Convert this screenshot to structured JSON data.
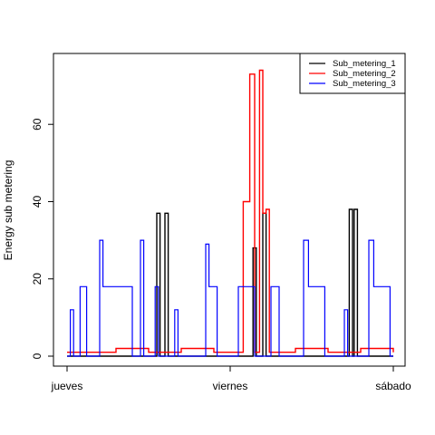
{
  "chart_data": {
    "type": "line",
    "title": "",
    "xlabel": "",
    "ylabel": "Energy sub metering",
    "x_ticks": [
      "jueves",
      "viernes",
      "sábado"
    ],
    "x_range_days": [
      0,
      2
    ],
    "ylim": [
      0,
      76
    ],
    "y_ticks": [
      0,
      20,
      40,
      60
    ],
    "grid": false,
    "legend_position": "top-right",
    "series": [
      {
        "name": "Sub_metering_1",
        "color": "#000000",
        "points": [
          [
            0,
            0
          ],
          [
            0.5,
            0
          ],
          [
            0.55,
            37
          ],
          [
            0.57,
            0
          ],
          [
            0.6,
            37
          ],
          [
            0.62,
            0
          ],
          [
            1.12,
            0
          ],
          [
            1.14,
            28
          ],
          [
            1.16,
            0
          ],
          [
            1.2,
            37
          ],
          [
            1.22,
            0
          ],
          [
            1.72,
            0
          ],
          [
            1.73,
            38
          ],
          [
            1.75,
            0
          ],
          [
            1.76,
            38
          ],
          [
            1.78,
            0
          ],
          [
            2,
            0
          ]
        ]
      },
      {
        "name": "Sub_metering_2",
        "color": "#ff0000",
        "points": [
          [
            0,
            1
          ],
          [
            0.1,
            1
          ],
          [
            0.3,
            2
          ],
          [
            0.5,
            1
          ],
          [
            0.7,
            2
          ],
          [
            0.9,
            1
          ],
          [
            1.08,
            40
          ],
          [
            1.12,
            73
          ],
          [
            1.15,
            1
          ],
          [
            1.18,
            74
          ],
          [
            1.2,
            37
          ],
          [
            1.22,
            38
          ],
          [
            1.24,
            1
          ],
          [
            1.4,
            2
          ],
          [
            1.6,
            1
          ],
          [
            1.8,
            2
          ],
          [
            2,
            1
          ]
        ]
      },
      {
        "name": "Sub_metering_3",
        "color": "#0000ff",
        "points": [
          [
            0,
            0
          ],
          [
            0.02,
            12
          ],
          [
            0.04,
            0
          ],
          [
            0.08,
            18
          ],
          [
            0.1,
            18
          ],
          [
            0.12,
            0
          ],
          [
            0.2,
            30
          ],
          [
            0.22,
            18
          ],
          [
            0.38,
            18
          ],
          [
            0.4,
            0
          ],
          [
            0.45,
            30
          ],
          [
            0.47,
            0
          ],
          [
            0.54,
            18
          ],
          [
            0.56,
            0
          ],
          [
            0.66,
            12
          ],
          [
            0.68,
            0
          ],
          [
            0.85,
            29
          ],
          [
            0.87,
            18
          ],
          [
            0.92,
            0
          ],
          [
            1.05,
            18
          ],
          [
            1.1,
            18
          ],
          [
            1.15,
            0
          ],
          [
            1.25,
            18
          ],
          [
            1.3,
            0
          ],
          [
            1.45,
            30
          ],
          [
            1.48,
            18
          ],
          [
            1.58,
            0
          ],
          [
            1.7,
            12
          ],
          [
            1.72,
            0
          ],
          [
            1.85,
            30
          ],
          [
            1.88,
            18
          ],
          [
            1.98,
            0
          ],
          [
            2,
            0
          ]
        ]
      }
    ]
  }
}
